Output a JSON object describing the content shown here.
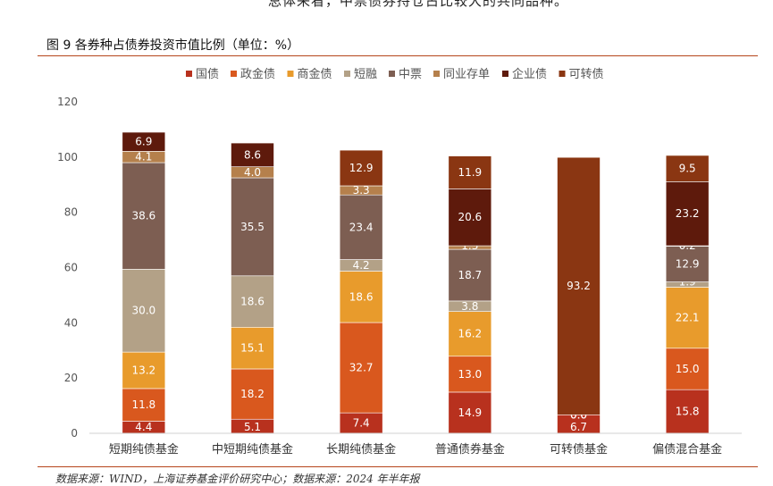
{
  "top_text": "总体来看，中票债券持仓占比较大的共同品种。",
  "figure_title": "图 9 各券种占债券投资市值比例（单位：%）",
  "source_text": "数据来源：WIND，上海证券基金评价研究中心；数据来源：2024 年半年报",
  "chart_data": {
    "type": "bar",
    "stacked": true,
    "title": "",
    "xlabel": "",
    "ylabel": "",
    "ylim": [
      0,
      120
    ],
    "yticks": [
      0,
      20,
      40,
      60,
      80,
      100,
      120
    ],
    "grid": false,
    "legend_position": "top",
    "categories": [
      "短期纯债基金",
      "中短期纯债基金",
      "长期纯债基金",
      "普通债券基金",
      "可转债基金",
      "偏债混合基金"
    ],
    "series": [
      {
        "name": "国债",
        "color": "#b8311e",
        "values": [
          4.4,
          5.1,
          7.4,
          14.9,
          6.7,
          15.8
        ],
        "labels": [
          "4.4",
          "5.1",
          "7.4",
          "14.9",
          "6.7",
          "15.8"
        ]
      },
      {
        "name": "政金债",
        "color": "#d9581e",
        "values": [
          11.8,
          18.2,
          32.7,
          13.0,
          0.0,
          15.0
        ],
        "labels": [
          "11.8",
          "18.2",
          "32.7",
          "13.0",
          "0.0",
          "15.0"
        ]
      },
      {
        "name": "商金债",
        "color": "#e89b2c",
        "values": [
          13.2,
          15.1,
          18.6,
          16.2,
          0.0,
          22.1
        ],
        "labels": [
          "13.2",
          "15.1",
          "18.6",
          "16.2",
          "0.0",
          "22.1"
        ]
      },
      {
        "name": "短融",
        "color": "#b3a187",
        "values": [
          30.0,
          18.6,
          4.2,
          3.8,
          0.0,
          1.9
        ],
        "labels": [
          "30.0",
          "18.6",
          "4.2",
          "3.8",
          "",
          "1.9"
        ]
      },
      {
        "name": "中票",
        "color": "#7d5e52",
        "values": [
          38.6,
          35.5,
          23.4,
          18.7,
          0.0,
          12.9
        ],
        "labels": [
          "38.6",
          "35.5",
          "23.4",
          "18.7",
          "",
          "12.9"
        ]
      },
      {
        "name": "同业存单",
        "color": "#b5804c",
        "values": [
          4.1,
          4.0,
          3.3,
          1.3,
          0.0,
          0.2
        ],
        "labels": [
          "4.1",
          "4.0",
          "3.3",
          "1.3",
          "",
          "0.2"
        ]
      },
      {
        "name": "企业债",
        "color": "#5e1a0c",
        "values": [
          6.9,
          8.6,
          0.0,
          20.6,
          0.0,
          23.2
        ],
        "labels": [
          "6.9",
          "8.6",
          "",
          "20.6",
          "",
          "23.2"
        ]
      },
      {
        "name": "可转债",
        "color": "#8a3612",
        "values": [
          0.0,
          0.0,
          12.9,
          11.9,
          93.2,
          9.5
        ],
        "labels": [
          "",
          "",
          "12.9",
          "11.9",
          "93.2",
          "9.5"
        ]
      }
    ]
  }
}
